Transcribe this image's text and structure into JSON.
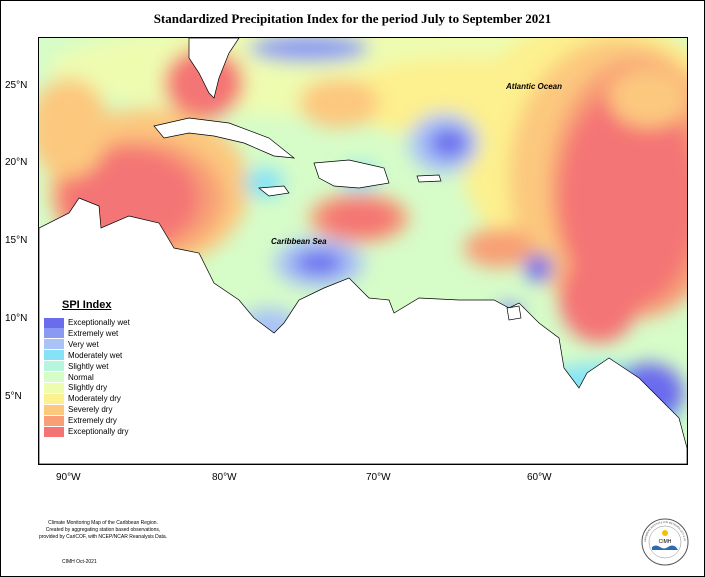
{
  "title": "Standardized Precipitation Index for the period July to September 2021",
  "axes": {
    "y_ticks": [
      "25°N",
      "20°N",
      "15°N",
      "10°N",
      "5°N"
    ],
    "x_ticks": [
      "90°W",
      "80°W",
      "70°W",
      "60°W"
    ]
  },
  "labels": {
    "atlantic": "Atlantic Ocean",
    "caribbean": "Caribbean Sea"
  },
  "legend": {
    "title": "SPI Index",
    "items": [
      {
        "label": "Exceptionally wet",
        "color": "#6b6bee"
      },
      {
        "label": "Extremely wet",
        "color": "#8a9af2"
      },
      {
        "label": "Very wet",
        "color": "#a9c3f7"
      },
      {
        "label": "Moderately wet",
        "color": "#86e3f7"
      },
      {
        "label": "Slightly wet",
        "color": "#b8f5de"
      },
      {
        "label": "Normal",
        "color": "#d6fcc8"
      },
      {
        "label": "Slightly dry",
        "color": "#eefcb0"
      },
      {
        "label": "Moderately dry",
        "color": "#fdf08e"
      },
      {
        "label": "Severely dry",
        "color": "#fcc87e"
      },
      {
        "label": "Extremely dry",
        "color": "#f89f76"
      },
      {
        "label": "Exceptionally dry",
        "color": "#f47474"
      }
    ]
  },
  "credits": {
    "line1": "Climate Monitoring Map of the Caribbean Region.",
    "line2": "Created by aggregating station based observations,",
    "line3": "provided by CariCOF, with NCEP/NCAR Reanalysis Data.",
    "date": "CIMH Oct-2021"
  },
  "logo": {
    "text": "CIMH",
    "ring_text": "CARIBBEAN INSTITUTE FOR METEOROLOGY & HYDROLOGY"
  }
}
